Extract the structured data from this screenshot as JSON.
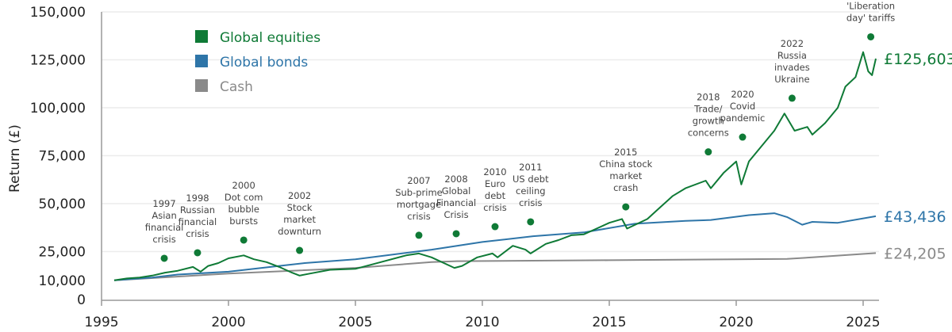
{
  "chart_data": {
    "type": "line",
    "ylabel": "Return (£)",
    "xlabel": "",
    "xlim": [
      1995,
      2025.7
    ],
    "ylim": [
      0,
      150000
    ],
    "x_ticks": [
      "1995",
      "2000",
      "2005",
      "2010",
      "2015",
      "2020",
      "2025"
    ],
    "y_ticks": [
      "0",
      "10,000",
      "25,000",
      "50,000",
      "75,000",
      "100,000",
      "125,000",
      "150,000"
    ],
    "y_tick_values": [
      0,
      10000,
      25000,
      50000,
      75000,
      100000,
      125000,
      150000
    ],
    "grid": true,
    "legend_position": "top-left",
    "colors": {
      "equities": "#0f7a36",
      "bonds": "#2e75a8",
      "cash": "#8a8a8a"
    },
    "series": [
      {
        "name": "Global equities",
        "end_label": "£125,603",
        "color": "#0f7a36",
        "x": [
          1995.5,
          1996,
          1996.5,
          1997,
          1997.5,
          1998,
          1998.6,
          1998.9,
          1999.2,
          1999.6,
          2000,
          2000.6,
          2001,
          2001.5,
          2002,
          2002.5,
          2002.8,
          2003.2,
          2004,
          2005,
          2006,
          2007,
          2007.5,
          2008,
          2008.9,
          2009.2,
          2009.8,
          2010.4,
          2010.6,
          2011.2,
          2011.7,
          2011.9,
          2012.5,
          2013,
          2013.5,
          2014,
          2014.5,
          2015,
          2015.5,
          2015.7,
          2016.5,
          2017,
          2017.5,
          2018,
          2018.8,
          2019,
          2019.5,
          2020,
          2020.2,
          2020.5,
          2021,
          2021.5,
          2021.9,
          2022.3,
          2022.8,
          2023,
          2023.5,
          2024,
          2024.3,
          2024.7,
          2025,
          2025.2,
          2025.35,
          2025.5
        ],
        "y": [
          10000,
          11000,
          11500,
          12500,
          14000,
          15000,
          17000,
          14500,
          17500,
          19000,
          21500,
          23000,
          21000,
          19500,
          17000,
          14000,
          12500,
          13500,
          15500,
          16000,
          19500,
          23000,
          24000,
          22000,
          16500,
          17500,
          22000,
          24000,
          22000,
          28000,
          26000,
          24000,
          29000,
          31000,
          33500,
          34000,
          37000,
          40000,
          42000,
          37000,
          42000,
          48000,
          54000,
          58000,
          62000,
          58000,
          66000,
          72000,
          60000,
          72000,
          80000,
          88000,
          97000,
          88000,
          90000,
          86000,
          92000,
          100000,
          111000,
          116000,
          129000,
          119000,
          117000,
          125603
        ]
      },
      {
        "name": "Global bonds",
        "end_label": "£43,436",
        "color": "#2e75a8",
        "x": [
          1995.5,
          1997,
          1998,
          2000,
          2002,
          2003,
          2005,
          2008,
          2010,
          2012,
          2014,
          2016,
          2018,
          2019,
          2020.5,
          2021.5,
          2022,
          2022.6,
          2023,
          2024,
          2025.5
        ],
        "y": [
          10000,
          11500,
          13000,
          14500,
          17500,
          19000,
          21000,
          26000,
          30000,
          33000,
          35000,
          39500,
          41000,
          41500,
          44000,
          45000,
          43000,
          39000,
          40500,
          40000,
          43436
        ]
      },
      {
        "name": "Cash",
        "end_label": "£24,205",
        "color": "#8a8a8a",
        "x": [
          1995.5,
          2000,
          2005,
          2008,
          2009,
          2015,
          2020,
          2022,
          2023,
          2025.5
        ],
        "y": [
          10000,
          13500,
          16500,
          19500,
          20000,
          20500,
          21000,
          21200,
          22000,
          24205
        ]
      }
    ],
    "annotations": [
      {
        "lines": [
          "1997",
          "Asian",
          "financial",
          "crisis"
        ],
        "x": 1997.47,
        "y": 21500
      },
      {
        "lines": [
          "1998",
          "Russian",
          "financial",
          "crisis"
        ],
        "x": 1998.78,
        "y": 24400
      },
      {
        "lines": [
          "2000",
          "Dot com",
          "bubble",
          "bursts"
        ],
        "x": 2000.6,
        "y": 31000
      },
      {
        "lines": [
          "2002",
          "Stock",
          "market",
          "downturn"
        ],
        "x": 2002.8,
        "y": 25600
      },
      {
        "lines": [
          "2007",
          "Sub-prime",
          "mortgage",
          "crisis"
        ],
        "x": 2007.5,
        "y": 33500
      },
      {
        "lines": [
          "2008",
          "Global",
          "Financial",
          "Crisis"
        ],
        "x": 2008.97,
        "y": 34300
      },
      {
        "lines": [
          "2010",
          "Euro",
          "debt",
          "crisis"
        ],
        "x": 2010.5,
        "y": 38000
      },
      {
        "lines": [
          "2011",
          "US debt",
          "ceiling",
          "crisis"
        ],
        "x": 2011.9,
        "y": 40500
      },
      {
        "lines": [
          "2015",
          "China stock",
          "market",
          "crash"
        ],
        "x": 2015.65,
        "y": 48300
      },
      {
        "lines": [
          "2018",
          "Trade/",
          "growth",
          "concerns"
        ],
        "x": 2018.9,
        "y": 77000
      },
      {
        "lines": [
          "2020",
          "Covid",
          "pandemic"
        ],
        "x": 2020.25,
        "y": 84700
      },
      {
        "lines": [
          "2022",
          "Russia",
          "invades",
          "Ukraine"
        ],
        "x": 2022.2,
        "y": 105000
      },
      {
        "lines": [
          "2025",
          "'Liberation",
          "day' tariffs"
        ],
        "x": 2025.3,
        "y": 137000
      }
    ]
  }
}
